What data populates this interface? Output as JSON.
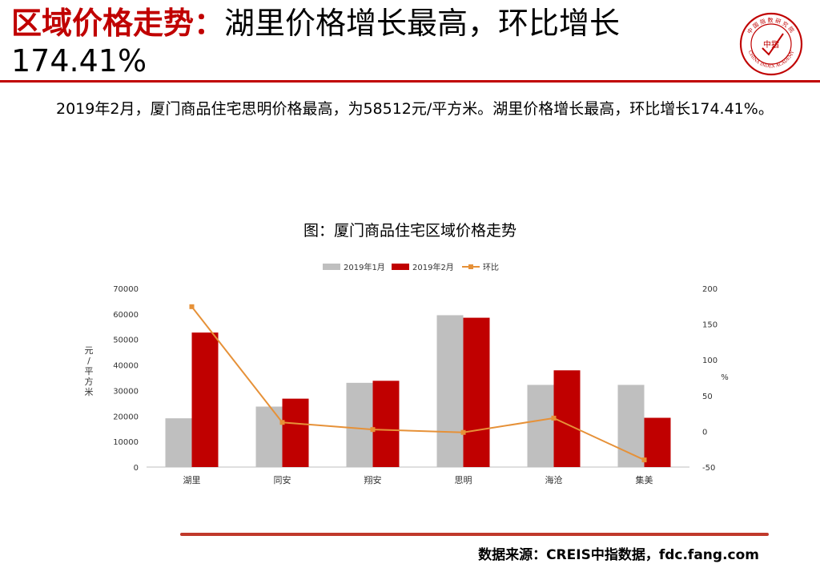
{
  "header": {
    "title_accent": "区域价格走势",
    "title_colon": "：",
    "title_rest": "湖里价格增长最高，环比增长174.41%"
  },
  "logo": {
    "center_text": "中指",
    "arc_text": "CHINA INDEX ACADEMY",
    "top_text": "中国指数研究院",
    "color": "#c00000"
  },
  "summary": "2019年2月，厦门商品住宅思明价格最高，为58512元/平方米。湖里价格增长最高，环比增长174.41%。",
  "chart_title": "图：厦门商品住宅区域价格走势",
  "source": "数据来源：CREIS中指数据，fdc.fang.com",
  "chart_data": {
    "type": "bar",
    "categories": [
      "湖里",
      "同安",
      "翔安",
      "思明",
      "海沧",
      "集美"
    ],
    "series": [
      {
        "name": "2019年1月",
        "kind": "bar",
        "axis": "left",
        "color": "#bfbfbf",
        "values": [
          19100,
          23700,
          33000,
          59500,
          32200,
          32200
        ]
      },
      {
        "name": "2019年2月",
        "kind": "bar",
        "axis": "left",
        "color": "#c00000",
        "values": [
          52700,
          26800,
          33800,
          58512,
          37900,
          19300
        ]
      },
      {
        "name": "环比",
        "kind": "line",
        "axis": "right",
        "color": "#e69138",
        "values": [
          174.41,
          12.5,
          2.5,
          -1.5,
          18.5,
          -40.0
        ]
      }
    ],
    "ylabel": "元/平方米",
    "ylim": [
      0,
      70000
    ],
    "yticks": [
      0,
      10000,
      20000,
      30000,
      40000,
      50000,
      60000,
      70000
    ],
    "y2label": "%",
    "y2lim": [
      -50,
      200
    ],
    "y2ticks": [
      -50,
      0,
      50,
      100,
      150,
      200
    ],
    "grid": false,
    "legend_position": "top-center"
  }
}
